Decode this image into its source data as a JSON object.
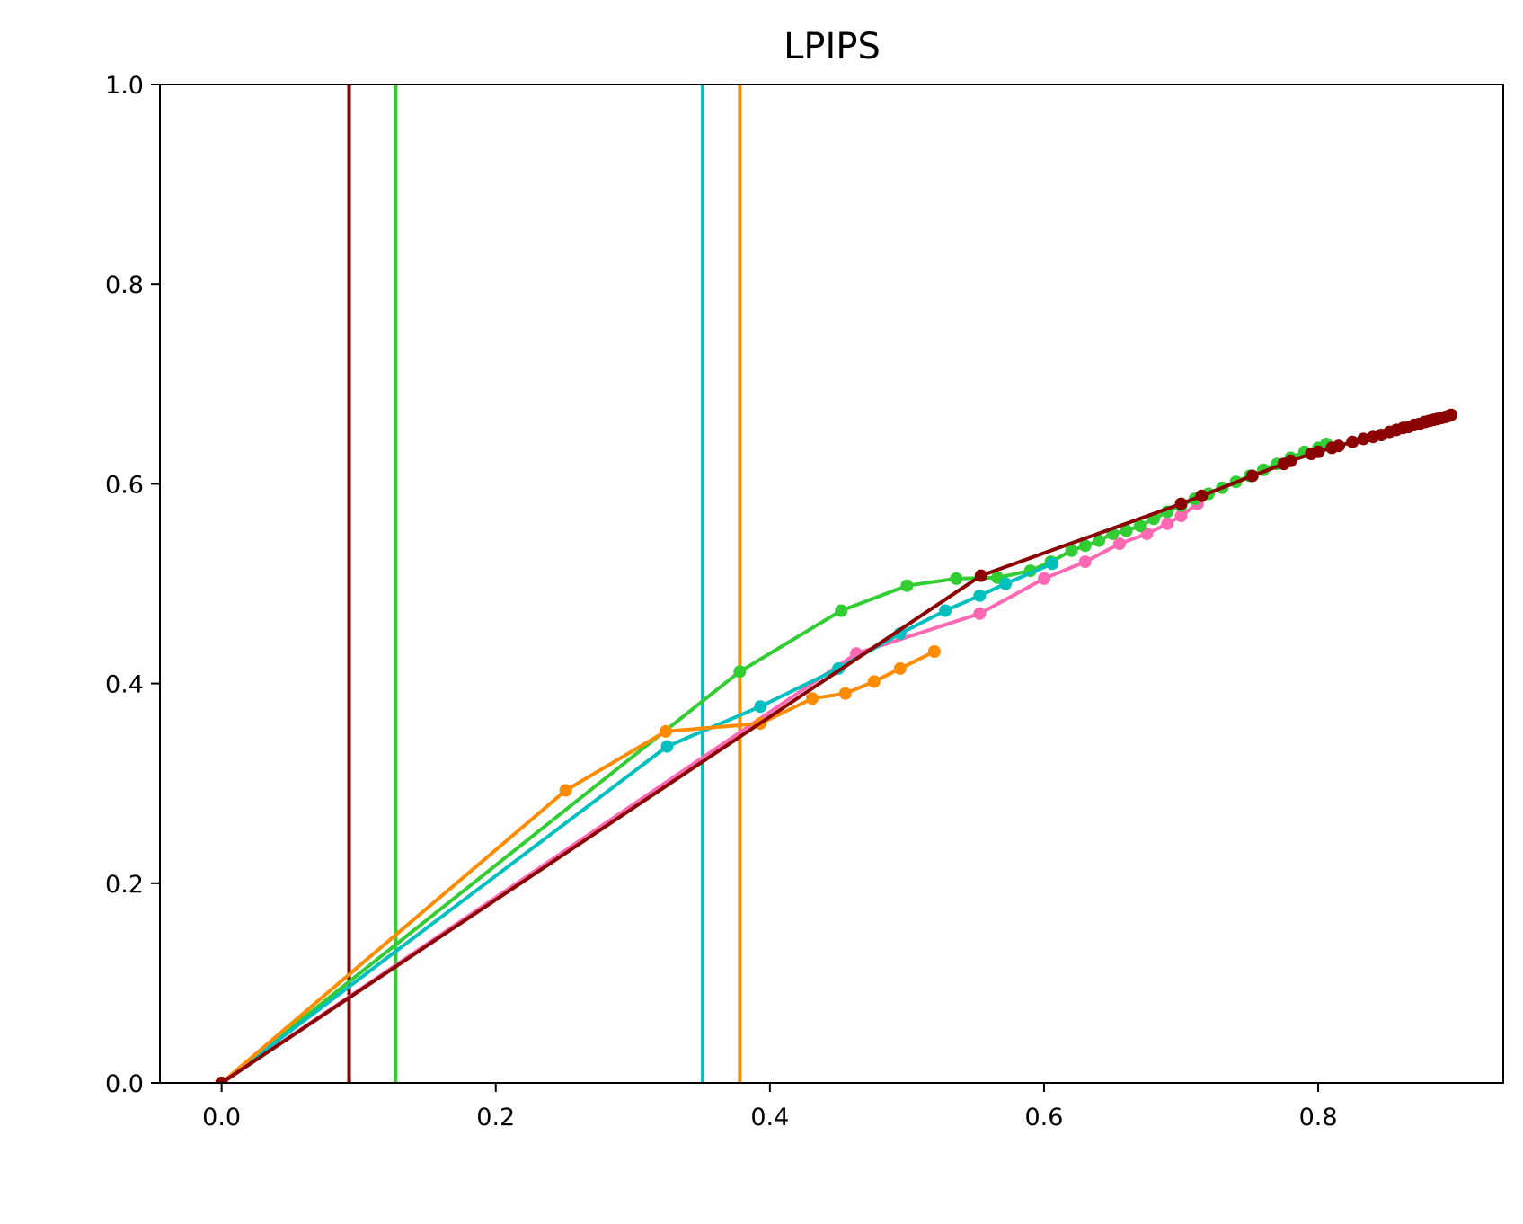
{
  "chart_data": {
    "type": "line",
    "title": "LPIPS",
    "xlabel": "",
    "ylabel": "",
    "xlim": [
      -0.045,
      0.935
    ],
    "ylim": [
      0.0,
      1.0
    ],
    "xticks": [
      "0.0",
      "0.2",
      "0.4",
      "0.6",
      "0.8"
    ],
    "yticks": [
      "0.0",
      "0.2",
      "0.4",
      "0.6",
      "0.8",
      "1.0"
    ],
    "grid": false,
    "legend": "none",
    "series": [
      {
        "color": "#ff69b4",
        "points": [
          [
            0.0,
            0.0
          ],
          [
            0.463,
            0.43
          ],
          [
            0.553,
            0.47
          ],
          [
            0.6,
            0.505
          ],
          [
            0.63,
            0.522
          ],
          [
            0.655,
            0.54
          ],
          [
            0.675,
            0.55
          ],
          [
            0.69,
            0.56
          ],
          [
            0.7,
            0.568
          ],
          [
            0.712,
            0.58
          ]
        ]
      },
      {
        "color": "#32cd32",
        "points": [
          [
            0.0,
            0.0
          ],
          [
            0.378,
            0.412
          ],
          [
            0.452,
            0.473
          ],
          [
            0.5,
            0.498
          ],
          [
            0.536,
            0.505
          ],
          [
            0.566,
            0.506
          ],
          [
            0.59,
            0.513
          ],
          [
            0.605,
            0.522
          ],
          [
            0.62,
            0.533
          ],
          [
            0.63,
            0.538
          ],
          [
            0.64,
            0.543
          ],
          [
            0.65,
            0.55
          ],
          [
            0.66,
            0.553
          ],
          [
            0.67,
            0.558
          ],
          [
            0.68,
            0.565
          ],
          [
            0.69,
            0.572
          ],
          [
            0.7,
            0.578
          ],
          [
            0.71,
            0.585
          ],
          [
            0.72,
            0.59
          ],
          [
            0.73,
            0.596
          ],
          [
            0.74,
            0.602
          ],
          [
            0.75,
            0.608
          ],
          [
            0.76,
            0.614
          ],
          [
            0.77,
            0.62
          ],
          [
            0.78,
            0.626
          ],
          [
            0.79,
            0.632
          ],
          [
            0.8,
            0.636
          ],
          [
            0.806,
            0.64
          ]
        ]
      },
      {
        "color": "#00bfbf",
        "points": [
          [
            0.0,
            0.0
          ],
          [
            0.325,
            0.337
          ],
          [
            0.393,
            0.377
          ],
          [
            0.45,
            0.415
          ],
          [
            0.495,
            0.45
          ],
          [
            0.528,
            0.473
          ],
          [
            0.553,
            0.488
          ],
          [
            0.572,
            0.5
          ],
          [
            0.606,
            0.52
          ]
        ]
      },
      {
        "color": "#ff8c00",
        "points": [
          [
            0.0,
            0.0
          ],
          [
            0.251,
            0.293
          ],
          [
            0.324,
            0.352
          ],
          [
            0.393,
            0.36
          ],
          [
            0.431,
            0.385
          ],
          [
            0.455,
            0.39
          ],
          [
            0.476,
            0.402
          ],
          [
            0.495,
            0.415
          ],
          [
            0.52,
            0.432
          ]
        ]
      },
      {
        "color": "#8b0000",
        "points": [
          [
            0.0,
            0.0
          ],
          [
            0.554,
            0.508
          ],
          [
            0.7,
            0.58
          ],
          [
            0.715,
            0.588
          ],
          [
            0.752,
            0.608
          ],
          [
            0.775,
            0.62
          ],
          [
            0.78,
            0.623
          ],
          [
            0.795,
            0.63
          ],
          [
            0.8,
            0.632
          ],
          [
            0.81,
            0.636
          ],
          [
            0.815,
            0.638
          ],
          [
            0.825,
            0.642
          ],
          [
            0.833,
            0.645
          ],
          [
            0.84,
            0.647
          ],
          [
            0.846,
            0.649
          ],
          [
            0.852,
            0.652
          ],
          [
            0.857,
            0.654
          ],
          [
            0.862,
            0.656
          ],
          [
            0.866,
            0.657
          ],
          [
            0.87,
            0.659
          ],
          [
            0.874,
            0.66
          ],
          [
            0.878,
            0.662
          ],
          [
            0.881,
            0.663
          ],
          [
            0.884,
            0.664
          ],
          [
            0.887,
            0.665
          ],
          [
            0.89,
            0.666
          ],
          [
            0.893,
            0.667
          ],
          [
            0.895,
            0.668
          ],
          [
            0.897,
            0.669
          ]
        ]
      }
    ],
    "vlines": [
      {
        "color": "#8b0000",
        "x": 0.093
      },
      {
        "color": "#32cd32",
        "x": 0.127
      },
      {
        "color": "#00bfbf",
        "x": 0.351
      },
      {
        "color": "#ff8c00",
        "x": 0.378
      }
    ]
  }
}
